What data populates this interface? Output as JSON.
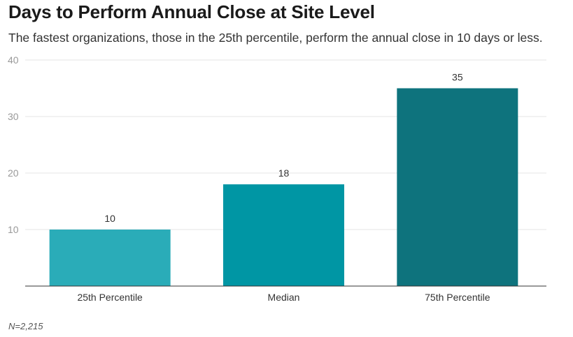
{
  "chart_data": {
    "type": "bar",
    "title": "Days to Perform Annual Close at Site Level",
    "subtitle": "The fastest organizations, those in the 25th percentile, perform the annual close in 10 days or less.",
    "categories": [
      "25th Percentile",
      "Median",
      "75th Percentile"
    ],
    "values": [
      10,
      18,
      35
    ],
    "colors": [
      "#2aacb8",
      "#0096a4",
      "#0e737d"
    ],
    "xlabel": "",
    "ylabel": "",
    "ylim": [
      0,
      40
    ],
    "yticks": [
      10,
      20,
      30,
      40
    ],
    "grid": true,
    "footnote": "N=2,215"
  }
}
